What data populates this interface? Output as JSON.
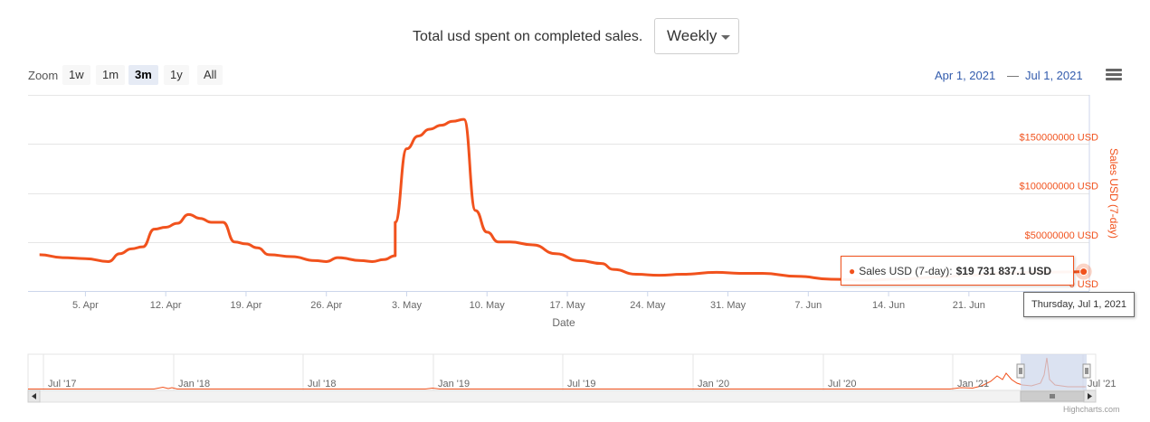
{
  "header": {
    "title": "Total usd spent on completed sales.",
    "period_select": "Weekly"
  },
  "range_selector": {
    "zoom_label": "Zoom",
    "buttons": [
      {
        "label": "1w",
        "active": false
      },
      {
        "label": "1m",
        "active": false
      },
      {
        "label": "3m",
        "active": true
      },
      {
        "label": "1y",
        "active": false
      },
      {
        "label": "All",
        "active": false
      }
    ],
    "from": "Apr 1, 2021",
    "to": "Jul 1, 2021"
  },
  "colors": {
    "series": "#f1521d",
    "navigator_mask": "#ccd6eb",
    "link": "#335cad"
  },
  "chart_data": {
    "type": "line",
    "title": "Total usd spent on completed sales.",
    "xlabel": "Date",
    "ylabel": "Sales USD (7-day)",
    "ylim": [
      0,
      200000000
    ],
    "ytick_labels": [
      "0 USD",
      "$50000000 USD",
      "$100000000 USD",
      "$150000000 USD"
    ],
    "xtick_labels": [
      "5. Apr",
      "12. Apr",
      "19. Apr",
      "26. Apr",
      "3. May",
      "10. May",
      "17. May",
      "24. May",
      "31. May",
      "7. Jun",
      "14. Jun",
      "21. Jun"
    ],
    "grid": true,
    "series": [
      {
        "name": "Sales USD (7-day)",
        "x": [
          "2021-04-01",
          "2021-04-03",
          "2021-04-05",
          "2021-04-07",
          "2021-04-08",
          "2021-04-09",
          "2021-04-10",
          "2021-04-11",
          "2021-04-12",
          "2021-04-13",
          "2021-04-14",
          "2021-04-15",
          "2021-04-16",
          "2021-04-17",
          "2021-04-18",
          "2021-04-19",
          "2021-04-20",
          "2021-04-21",
          "2021-04-23",
          "2021-04-25",
          "2021-04-26",
          "2021-04-27",
          "2021-04-29",
          "2021-04-30",
          "2021-05-01",
          "2021-05-02",
          "2021-05-02",
          "2021-05-03",
          "2021-05-04",
          "2021-05-05",
          "2021-05-06",
          "2021-05-07",
          "2021-05-08",
          "2021-05-09",
          "2021-05-10",
          "2021-05-11",
          "2021-05-12",
          "2021-05-14",
          "2021-05-16",
          "2021-05-18",
          "2021-05-20",
          "2021-05-21",
          "2021-05-23",
          "2021-05-25",
          "2021-05-27",
          "2021-05-30",
          "2021-06-01",
          "2021-06-03",
          "2021-06-06",
          "2021-06-09",
          "2021-06-12",
          "2021-06-15",
          "2021-06-18",
          "2021-06-21",
          "2021-06-24",
          "2021-06-27",
          "2021-06-30",
          "2021-07-01"
        ],
        "y": [
          37000000,
          34000000,
          33000000,
          30000000,
          38000000,
          43000000,
          45000000,
          63000000,
          65000000,
          69000000,
          78000000,
          74000000,
          70000000,
          70000000,
          50000000,
          48000000,
          44000000,
          37000000,
          35000000,
          31000000,
          30000000,
          34000000,
          31000000,
          30000000,
          32000000,
          36000000,
          70000000,
          145000000,
          158000000,
          165000000,
          169000000,
          173000000,
          175000000,
          82000000,
          60000000,
          50000000,
          50000000,
          47000000,
          38000000,
          31000000,
          28000000,
          22000000,
          17000000,
          16000000,
          17000000,
          19000000,
          18000000,
          18000000,
          15000000,
          12000000,
          11000000,
          12000000,
          14000000,
          16000000,
          18000000,
          19000000,
          19500000,
          19731837
        ]
      }
    ],
    "navigator": {
      "tick_labels": [
        "Jul '17",
        "Jan '18",
        "Jul '18",
        "Jan '19",
        "Jul '19",
        "Jan '20",
        "Jul '20",
        "Jan '21",
        "Jul '21"
      ]
    }
  },
  "tooltip": {
    "series_label": "Sales USD (7-day):",
    "value": "$19 731 837.1 USD",
    "date_label": "Thursday, Jul 1, 2021"
  },
  "credits": "Highcharts.com"
}
